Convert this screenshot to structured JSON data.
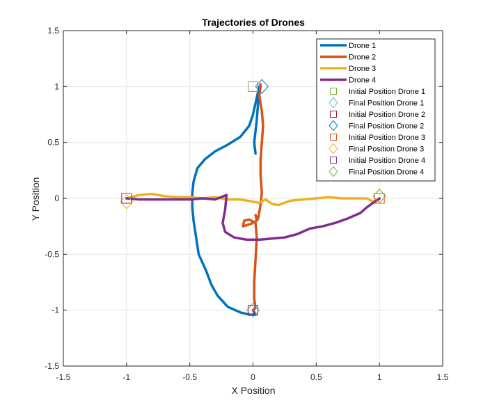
{
  "chart_data": {
    "type": "line",
    "title": "Trajectories of Drones",
    "xlabel": "X Position",
    "ylabel": "Y Position",
    "xlim": [
      -1.5,
      1.5
    ],
    "ylim": [
      -1.5,
      1.5
    ],
    "xticks": [
      -1.5,
      -1,
      -0.5,
      0,
      0.5,
      1,
      1.5
    ],
    "yticks": [
      -1.5,
      -1,
      -0.5,
      0,
      0.5,
      1,
      1.5
    ],
    "xtick_labels": [
      "-1.5",
      "-1",
      "-0.5",
      "0",
      "0.5",
      "1",
      "1.5"
    ],
    "ytick_labels": [
      "-1.5",
      "-1",
      "-0.5",
      "0",
      "0.5",
      "1",
      "1.5"
    ],
    "grid": true,
    "legend_position": "top-right",
    "series": [
      {
        "name": "Drone 1",
        "color": "#0072BD",
        "x": [
          0.0,
          0.02,
          -0.03,
          -0.1,
          -0.2,
          -0.28,
          -0.33,
          -0.37,
          -0.43,
          -0.45,
          -0.47,
          -0.48,
          -0.48,
          -0.47,
          -0.44,
          -0.38,
          -0.3,
          -0.2,
          -0.1,
          -0.03,
          0.0,
          0.03,
          0.05,
          0.06,
          0.05,
          0.04,
          0.03,
          0.02,
          0.01,
          0.02
        ],
        "y": [
          -1.0,
          -1.04,
          -1.04,
          -1.02,
          -0.97,
          -0.87,
          -0.77,
          -0.65,
          -0.5,
          -0.35,
          -0.2,
          -0.08,
          0.05,
          0.15,
          0.27,
          0.35,
          0.42,
          0.48,
          0.55,
          0.65,
          0.75,
          0.9,
          1.0,
          1.0,
          0.95,
          0.85,
          0.7,
          0.6,
          0.5,
          0.4
        ]
      },
      {
        "name": "Drone 2",
        "color": "#D95319",
        "x": [
          0.06,
          0.05,
          0.07,
          0.08,
          0.07,
          0.06,
          0.06,
          0.07,
          0.06,
          0.05,
          0.04,
          0.03,
          0.03,
          0.02,
          0.03,
          -0.02,
          -0.08,
          -0.07,
          -0.03,
          0.02,
          0.03,
          0.02,
          0.01,
          0.01,
          0.02,
          0.0
        ],
        "y": [
          1.02,
          0.92,
          0.78,
          0.65,
          0.5,
          0.35,
          0.2,
          0.05,
          -0.05,
          -0.12,
          -0.18,
          -0.2,
          -0.17,
          -0.15,
          -0.2,
          -0.23,
          -0.25,
          -0.2,
          -0.19,
          -0.22,
          -0.35,
          -0.55,
          -0.75,
          -0.9,
          -0.98,
          -1.0
        ]
      },
      {
        "name": "Drone 3",
        "color": "#EDB120",
        "x": [
          -1.0,
          -0.9,
          -0.8,
          -0.7,
          -0.6,
          -0.5,
          -0.4,
          -0.3,
          -0.2,
          -0.1,
          0.0,
          0.05,
          0.1,
          0.15,
          0.2,
          0.3,
          0.4,
          0.5,
          0.6,
          0.7,
          0.8,
          0.9,
          0.95,
          1.0
        ],
        "y": [
          0.0,
          0.03,
          0.04,
          0.02,
          0.01,
          0.01,
          0.0,
          0.01,
          -0.01,
          -0.01,
          -0.03,
          -0.04,
          -0.01,
          -0.05,
          -0.06,
          -0.02,
          -0.01,
          0.0,
          0.01,
          0.0,
          0.0,
          0.0,
          -0.03,
          -0.01
        ]
      },
      {
        "name": "Drone 4",
        "color": "#7E2F8E",
        "x": [
          -1.0,
          -0.9,
          -0.8,
          -0.7,
          -0.6,
          -0.5,
          -0.4,
          -0.3,
          -0.21,
          -0.22,
          -0.24,
          -0.22,
          -0.15,
          -0.05,
          0.05,
          0.15,
          0.25,
          0.35,
          0.45,
          0.55,
          0.65,
          0.75,
          0.85,
          0.9,
          0.95,
          1.0
        ],
        "y": [
          0.0,
          -0.01,
          -0.01,
          -0.01,
          -0.01,
          -0.01,
          0.0,
          -0.01,
          0.03,
          -0.1,
          -0.22,
          -0.3,
          -0.35,
          -0.37,
          -0.37,
          -0.36,
          -0.35,
          -0.32,
          -0.27,
          -0.25,
          -0.22,
          -0.18,
          -0.13,
          -0.08,
          -0.04,
          0.0
        ]
      }
    ],
    "markers": [
      {
        "name": "Initial Position Drone 1",
        "shape": "square",
        "color": "#77AC30",
        "x": 0.0,
        "y": 1.0
      },
      {
        "name": "Final Position Drone 1",
        "shape": "diamond",
        "color": "#4DBEEE",
        "x": 0.0,
        "y": -1.0
      },
      {
        "name": "Initial Position Drone 2",
        "shape": "square",
        "color": "#A2142F",
        "x": 0.0,
        "y": -1.0
      },
      {
        "name": "Final Position Drone 2",
        "shape": "diamond",
        "color": "#0072BD",
        "x": 0.07,
        "y": 1.0
      },
      {
        "name": "Initial Position Drone 3",
        "shape": "square",
        "color": "#D95319",
        "x": 1.0,
        "y": 0.0
      },
      {
        "name": "Final Position Drone 3",
        "shape": "diamond",
        "color": "#EDB120",
        "x": -1.0,
        "y": -0.03
      },
      {
        "name": "Initial Position Drone 4",
        "shape": "square",
        "color": "#7E2F8E",
        "x": -1.0,
        "y": 0.0
      },
      {
        "name": "Final Position Drone 4",
        "shape": "diamond",
        "color": "#77AC30",
        "x": 1.0,
        "y": 0.02
      }
    ]
  }
}
